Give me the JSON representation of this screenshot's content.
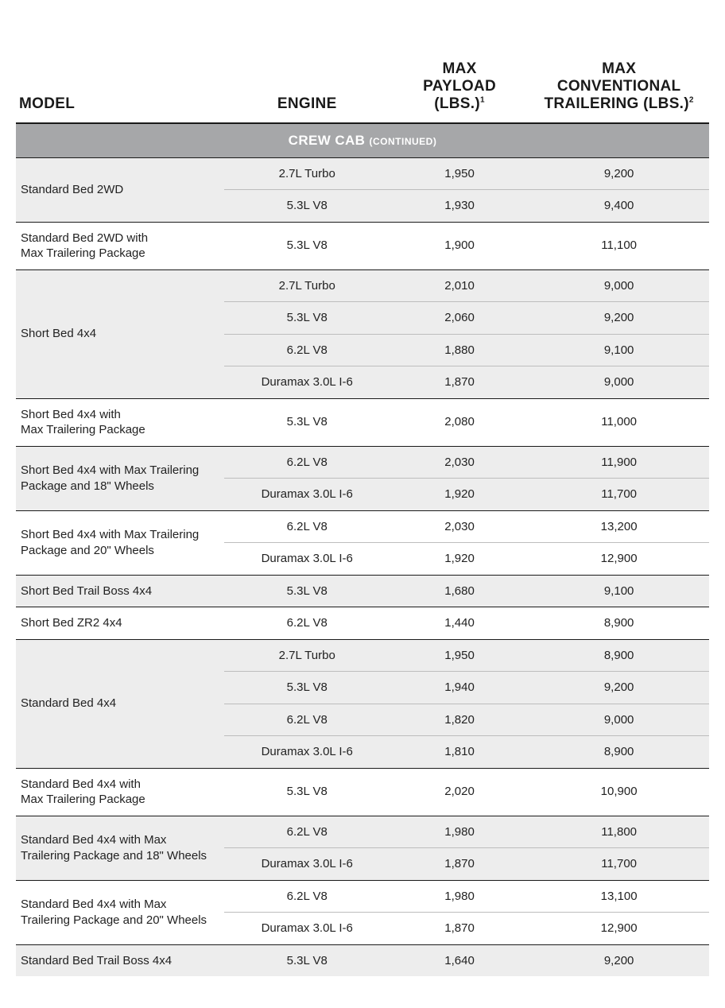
{
  "headers": {
    "model": "MODEL",
    "engine": "ENGINE",
    "payload": "MAX\nPAYLOAD\n(LBS.)",
    "payload_sup": "1",
    "trailering": "MAX\nCONVENTIONAL\nTRAILERING (LBS.)",
    "trailering_sup": "2"
  },
  "section": {
    "title": "CREW CAB",
    "note": "(CONTINUED)"
  },
  "groups": [
    {
      "model": "Standard Bed 2WD",
      "stripe": true,
      "rows": [
        {
          "engine": "2.7L Turbo",
          "payload": "1,950",
          "trail": "9,200"
        },
        {
          "engine": "5.3L V8",
          "payload": "1,930",
          "trail": "9,400"
        }
      ]
    },
    {
      "model": "Standard Bed 2WD with\nMax Trailering Package",
      "stripe": false,
      "rows": [
        {
          "engine": "5.3L V8",
          "payload": "1,900",
          "trail": "11,100"
        }
      ]
    },
    {
      "model": "Short Bed 4x4",
      "stripe": true,
      "rows": [
        {
          "engine": "2.7L Turbo",
          "payload": "2,010",
          "trail": "9,000"
        },
        {
          "engine": "5.3L V8",
          "payload": "2,060",
          "trail": "9,200"
        },
        {
          "engine": "6.2L V8",
          "payload": "1,880",
          "trail": "9,100"
        },
        {
          "engine": "Duramax 3.0L I-6",
          "payload": "1,870",
          "trail": "9,000"
        }
      ]
    },
    {
      "model": "Short Bed 4x4 with\nMax Trailering Package",
      "stripe": false,
      "rows": [
        {
          "engine": "5.3L V8",
          "payload": "2,080",
          "trail": "11,000"
        }
      ]
    },
    {
      "model": "Short Bed 4x4 with Max Trailering\nPackage and 18\" Wheels",
      "stripe": true,
      "rows": [
        {
          "engine": "6.2L V8",
          "payload": "2,030",
          "trail": "11,900"
        },
        {
          "engine": "Duramax 3.0L I-6",
          "payload": "1,920",
          "trail": "11,700"
        }
      ]
    },
    {
      "model": "Short Bed 4x4 with Max Trailering\nPackage and 20\" Wheels",
      "stripe": false,
      "rows": [
        {
          "engine": "6.2L V8",
          "payload": "2,030",
          "trail": "13,200"
        },
        {
          "engine": "Duramax 3.0L I-6",
          "payload": "1,920",
          "trail": "12,900"
        }
      ]
    },
    {
      "model": "Short Bed Trail Boss 4x4",
      "stripe": true,
      "rows": [
        {
          "engine": "5.3L V8",
          "payload": "1,680",
          "trail": "9,100"
        }
      ]
    },
    {
      "model": "Short Bed ZR2 4x4",
      "stripe": false,
      "rows": [
        {
          "engine": "6.2L V8",
          "payload": "1,440",
          "trail": "8,900"
        }
      ]
    },
    {
      "model": "Standard Bed 4x4",
      "stripe": true,
      "rows": [
        {
          "engine": "2.7L Turbo",
          "payload": "1,950",
          "trail": "8,900"
        },
        {
          "engine": "5.3L V8",
          "payload": "1,940",
          "trail": "9,200"
        },
        {
          "engine": "6.2L V8",
          "payload": "1,820",
          "trail": "9,000"
        },
        {
          "engine": "Duramax 3.0L I-6",
          "payload": "1,810",
          "trail": "8,900"
        }
      ]
    },
    {
      "model": "Standard Bed 4x4 with\nMax Trailering Package",
      "stripe": false,
      "rows": [
        {
          "engine": "5.3L V8",
          "payload": "2,020",
          "trail": "10,900"
        }
      ]
    },
    {
      "model": "Standard Bed 4x4 with Max\nTrailering Package and 18\" Wheels",
      "stripe": true,
      "rows": [
        {
          "engine": "6.2L V8",
          "payload": "1,980",
          "trail": "11,800"
        },
        {
          "engine": "Duramax 3.0L I-6",
          "payload": "1,870",
          "trail": "11,700"
        }
      ]
    },
    {
      "model": "Standard Bed 4x4 with Max\nTrailering Package and 20\" Wheels",
      "stripe": false,
      "rows": [
        {
          "engine": "6.2L V8",
          "payload": "1,980",
          "trail": "13,100"
        },
        {
          "engine": "Duramax 3.0L I-6",
          "payload": "1,870",
          "trail": "12,900"
        }
      ]
    },
    {
      "model": "Standard Bed Trail Boss 4x4",
      "stripe": true,
      "rows": [
        {
          "engine": "5.3L V8",
          "payload": "1,640",
          "trail": "9,200"
        }
      ]
    }
  ]
}
